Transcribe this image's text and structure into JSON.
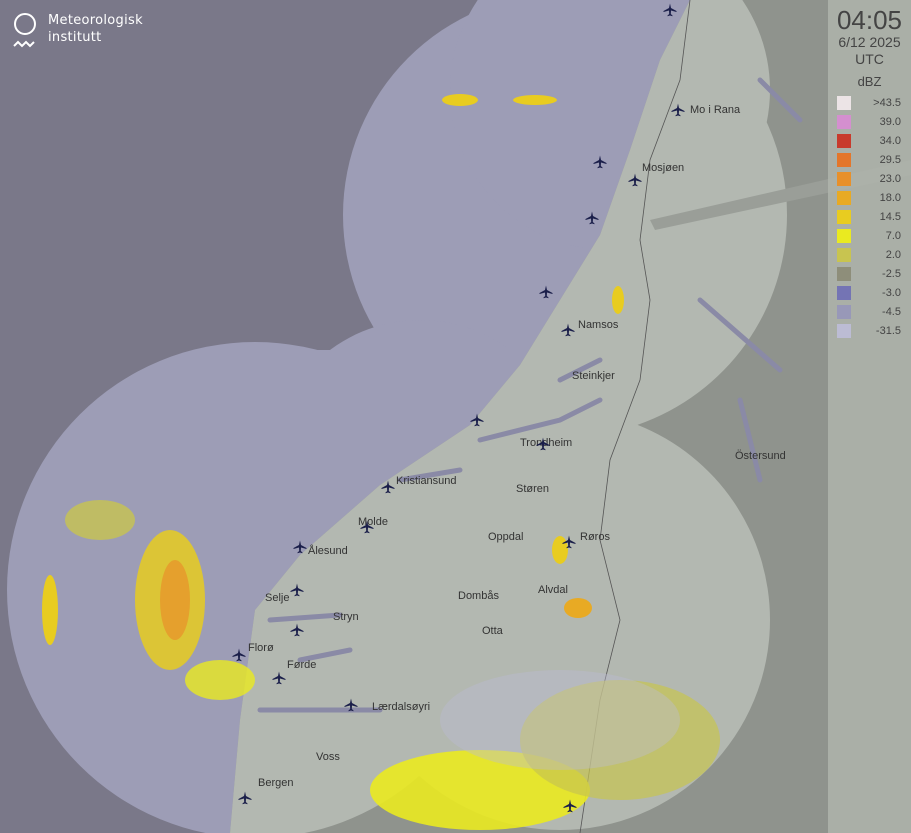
{
  "logo": {
    "line1": "Meteorologisk",
    "line2": "institutt"
  },
  "panel": {
    "time": "04:05",
    "date": "6/12 2025",
    "timezone": "UTC",
    "unit": "dBZ"
  },
  "legend": [
    {
      "label": ">43.5",
      "color": "#ece4e6"
    },
    {
      "label": "39.0",
      "color": "#d48fcf"
    },
    {
      "label": "34.0",
      "color": "#c83a2c"
    },
    {
      "label": "29.5",
      "color": "#e4762a"
    },
    {
      "label": "23.0",
      "color": "#e8902a"
    },
    {
      "label": "18.0",
      "color": "#e8aa24"
    },
    {
      "label": "14.5",
      "color": "#e8cc20"
    },
    {
      "label": "7.0",
      "color": "#eaea20"
    },
    {
      "label": "2.0",
      "color": "#c8c450"
    },
    {
      "label": "-2.5",
      "color": "#8e8e7a"
    },
    {
      "label": "-3.0",
      "color": "#7474b4"
    },
    {
      "label": "-4.5",
      "color": "#9898b8"
    },
    {
      "label": "-31.5",
      "color": "#bcbcd4"
    }
  ],
  "colors": {
    "outside": "#7a7889",
    "coverage_sea": "#9d9db6",
    "land": "#b3b8b1",
    "lakes": "#8a8aa6"
  },
  "cities": [
    {
      "name": "Mo i Rana"
    },
    {
      "name": "Mosjøen"
    },
    {
      "name": "Namsos"
    },
    {
      "name": "Steinkjer"
    },
    {
      "name": "Trondheim"
    },
    {
      "name": "Östersund"
    },
    {
      "name": "Kristiansund"
    },
    {
      "name": "Støren"
    },
    {
      "name": "Molde"
    },
    {
      "name": "Ålesund"
    },
    {
      "name": "Oppdal"
    },
    {
      "name": "Røros"
    },
    {
      "name": "Selje"
    },
    {
      "name": "Dombås"
    },
    {
      "name": "Alvdal"
    },
    {
      "name": "Stryn"
    },
    {
      "name": "Otta"
    },
    {
      "name": "Florø"
    },
    {
      "name": "Førde"
    },
    {
      "name": "Lærdalsøyri"
    },
    {
      "name": "Voss"
    },
    {
      "name": "Bergen"
    }
  ],
  "airport_icon": "airplane-icon"
}
